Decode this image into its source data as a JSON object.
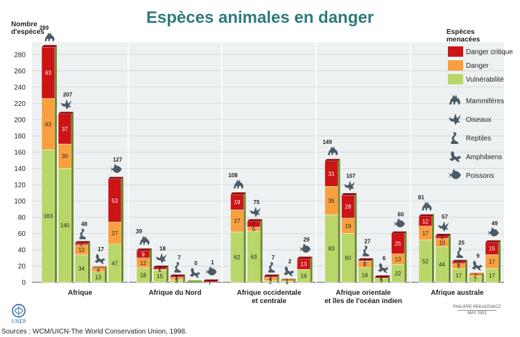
{
  "page_title": "Espèces animales en danger",
  "legend": {
    "title_line1": "Espèces",
    "title_line2": "menacées",
    "status": [
      {
        "label": "Danger critique",
        "color": "#cc1417"
      },
      {
        "label": "Danger",
        "color": "#f8a040"
      },
      {
        "label": "Vulnérabilité",
        "color": "#b9d669"
      }
    ],
    "icons": [
      {
        "label": "Mammifères",
        "icon": "wolf-icon"
      },
      {
        "label": "Oiseaux",
        "icon": "bird-icon"
      },
      {
        "label": "Reptiles",
        "icon": "snake-icon"
      },
      {
        "label": "Amphibiens",
        "icon": "frog-icon"
      },
      {
        "label": "Poissons",
        "icon": "fish-icon"
      }
    ]
  },
  "source": "Sources : WCM/UICN-The World Conservation Union, 1998.",
  "credit": {
    "author": "PHILIPPE REKACEWICZ",
    "date": "MAY 2002"
  },
  "logo_text": "UNEP",
  "chart_data": {
    "type": "bar",
    "stacked": true,
    "ylabel_line1": "Nombre",
    "ylabel_line2": "d'espèces",
    "ylim": [
      0,
      290
    ],
    "yticks": [
      0,
      20,
      40,
      60,
      80,
      100,
      120,
      140,
      160,
      180,
      200,
      220,
      240,
      260,
      280
    ],
    "grid": true,
    "legend_position": "right",
    "series_names": [
      "Vulnérabilité",
      "Danger",
      "Danger critique"
    ],
    "groups": [
      {
        "region_line1": "Afrique",
        "region_line2": "",
        "bars": [
          {
            "animal": "Mammifères",
            "vulnerable": 163,
            "danger": 63,
            "critique": 63,
            "total": 289
          },
          {
            "animal": "Oiseaux",
            "vulnerable": 140,
            "danger": 30,
            "critique": 37,
            "total": 207
          },
          {
            "animal": "Reptiles",
            "vulnerable": 34,
            "danger": 12,
            "critique": 2,
            "total": 48
          },
          {
            "animal": "Amphibiens",
            "vulnerable": 13,
            "danger": 4,
            "critique": 0,
            "total": 17
          },
          {
            "animal": "Poissons",
            "vulnerable": 47,
            "danger": 27,
            "critique": 53,
            "total": 127
          }
        ]
      },
      {
        "region_line1": "Afrique du Nord",
        "region_line2": "",
        "bars": [
          {
            "animal": "Mammifères",
            "vulnerable": 18,
            "danger": 12,
            "critique": 9,
            "total": 39
          },
          {
            "animal": "Oiseaux",
            "vulnerable": 15,
            "danger": 1,
            "critique": 2,
            "total": 18
          },
          {
            "animal": "Reptiles",
            "vulnerable": 3,
            "danger": 3,
            "critique": 1,
            "total": 7
          },
          {
            "animal": "Amphibiens",
            "vulnerable": 0,
            "danger": 0,
            "critique": 0,
            "total": 0
          },
          {
            "animal": "Poissons",
            "vulnerable": 0,
            "danger": 0,
            "critique": 1,
            "total": 1
          }
        ]
      },
      {
        "region_line1": "Afrique occidentale",
        "region_line2": "et centrale",
        "bars": [
          {
            "animal": "Mammifères",
            "vulnerable": 62,
            "danger": 27,
            "critique": 19,
            "total": 108
          },
          {
            "animal": "Oiseaux",
            "vulnerable": 63,
            "danger": 5,
            "critique": 7,
            "total": 75
          },
          {
            "animal": "Reptiles",
            "vulnerable": 2,
            "danger": 4,
            "critique": 1,
            "total": 7
          },
          {
            "animal": "Amphibiens",
            "vulnerable": 1,
            "danger": 1,
            "critique": 0,
            "total": 2
          },
          {
            "animal": "Poissons",
            "vulnerable": 16,
            "danger": 0,
            "critique": 13,
            "total": 29
          }
        ]
      },
      {
        "region_line1": "Afrique orientale",
        "region_line2": "et îles de l'océan indien",
        "bars": [
          {
            "animal": "Mammifères",
            "vulnerable": 83,
            "danger": 35,
            "critique": 31,
            "total": 149
          },
          {
            "animal": "Oiseaux",
            "vulnerable": 60,
            "danger": 19,
            "critique": 28,
            "total": 107
          },
          {
            "animal": "Reptiles",
            "vulnerable": 18,
            "danger": 8,
            "critique": 1,
            "total": 27
          },
          {
            "animal": "Amphibiens",
            "vulnerable": 5,
            "danger": 0,
            "critique": 1,
            "total": 6
          },
          {
            "animal": "Poissons",
            "vulnerable": 22,
            "danger": 13,
            "critique": 25,
            "total": 60
          }
        ]
      },
      {
        "region_line1": "Afrique australe",
        "region_line2": "",
        "bars": [
          {
            "animal": "Mammifères",
            "vulnerable": 52,
            "danger": 17,
            "critique": 12,
            "total": 81
          },
          {
            "animal": "Oiseaux",
            "vulnerable": 44,
            "danger": 10,
            "critique": 3,
            "total": 57
          },
          {
            "animal": "Reptiles",
            "vulnerable": 17,
            "danger": 6,
            "critique": 2,
            "total": 25
          },
          {
            "animal": "Amphibiens",
            "vulnerable": 7,
            "danger": 2,
            "critique": 0,
            "total": 9
          },
          {
            "animal": "Poissons",
            "vulnerable": 17,
            "danger": 17,
            "critique": 15,
            "total": 49
          }
        ]
      }
    ]
  }
}
